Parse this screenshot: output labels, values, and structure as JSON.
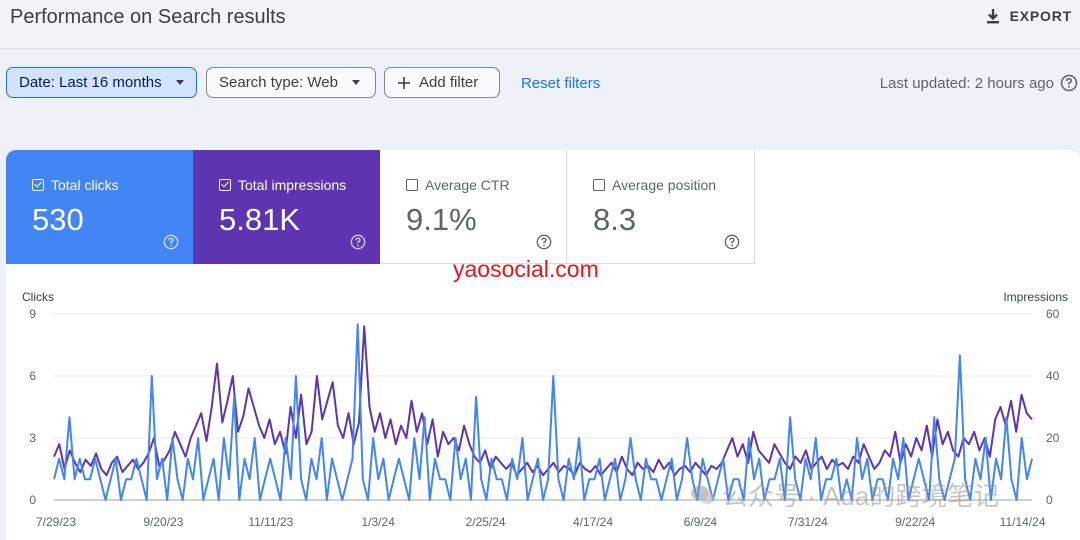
{
  "header": {
    "title": "Performance on Search results",
    "export_label": "EXPORT"
  },
  "filters": {
    "date": "Date: Last 16 months",
    "search_type": "Search type: Web",
    "add_filter": "Add filter",
    "reset": "Reset filters",
    "last_updated": "Last updated: 2 hours ago"
  },
  "metrics": [
    {
      "label": "Total clicks",
      "value": "530",
      "checked": true,
      "color": "#4285f4"
    },
    {
      "label": "Total impressions",
      "value": "5.81K",
      "checked": true,
      "color": "#5e35b1"
    },
    {
      "label": "Average CTR",
      "value": "9.1%",
      "checked": false
    },
    {
      "label": "Average position",
      "value": "8.3",
      "checked": false
    }
  ],
  "watermarks": {
    "site": "yaosocial.com",
    "wechat": "公众号 · Ada的跨境笔记"
  },
  "chart_data": {
    "type": "line",
    "left_axis_label": "Clicks",
    "right_axis_label": "Impressions",
    "left_ticks": [
      "9",
      "6",
      "3",
      "0"
    ],
    "right_ticks": [
      "60",
      "40",
      "20",
      "0"
    ],
    "left_range": [
      0,
      9
    ],
    "right_range": [
      0,
      60
    ],
    "x_ticks": [
      "7/29/23",
      "9/20/23",
      "11/11/23",
      "1/3/24",
      "2/25/24",
      "4/17/24",
      "6/9/24",
      "7/31/24",
      "9/22/24",
      "11/14/24"
    ],
    "series": [
      {
        "name": "Clicks",
        "axis": "left",
        "color": "#4285f4",
        "values": [
          1,
          2,
          1,
          4,
          1,
          2,
          1,
          1,
          2,
          1,
          0,
          1,
          2,
          0,
          1,
          1,
          2,
          1,
          0,
          6,
          1,
          2,
          0,
          3,
          1,
          0,
          2,
          1,
          3,
          0,
          1,
          2,
          0,
          3,
          1,
          5,
          0,
          2,
          1,
          3,
          0,
          1,
          2,
          1,
          0,
          3,
          1,
          6,
          1,
          0,
          2,
          1,
          3,
          0,
          2,
          1,
          0,
          1,
          2,
          8.5,
          1,
          0,
          3,
          1,
          2,
          0,
          1,
          2,
          1,
          0,
          3,
          1,
          4,
          0,
          2,
          1,
          1,
          0,
          3,
          1,
          2,
          0,
          5,
          1,
          0,
          2,
          1,
          1,
          0,
          2,
          1,
          3,
          0,
          1,
          2,
          0,
          1,
          6,
          1,
          0,
          2,
          1,
          3,
          0,
          1,
          1,
          2,
          0,
          1,
          2,
          0,
          1,
          3,
          1,
          0,
          2,
          1,
          1,
          0,
          1,
          2,
          0,
          1,
          3,
          1,
          0,
          2,
          1,
          0,
          1,
          2,
          0,
          1,
          1,
          0,
          3,
          1,
          2,
          0,
          1,
          1,
          2,
          0,
          4,
          1,
          0,
          2,
          1,
          3,
          0,
          1,
          1,
          2,
          0,
          1,
          0,
          3,
          1,
          2,
          0,
          1,
          1,
          0,
          2,
          1,
          3,
          0,
          1,
          2,
          1,
          0,
          4,
          1,
          0,
          1,
          2,
          7,
          1,
          0,
          2,
          1,
          3,
          0,
          2,
          1,
          4,
          1,
          0,
          3,
          1,
          2
        ]
      },
      {
        "name": "Impressions",
        "axis": "right",
        "color": "#5e35b1",
        "values": [
          14,
          18,
          10,
          16,
          12,
          9,
          13,
          11,
          15,
          10,
          8,
          12,
          14,
          9,
          11,
          13,
          10,
          12,
          15,
          20,
          11,
          13,
          16,
          22,
          18,
          14,
          20,
          24,
          28,
          19,
          30,
          44,
          25,
          32,
          40,
          22,
          27,
          36,
          30,
          24,
          20,
          26,
          18,
          22,
          15,
          30,
          20,
          34,
          18,
          22,
          40,
          26,
          32,
          38,
          24,
          20,
          28,
          18,
          25,
          56,
          30,
          22,
          28,
          20,
          26,
          18,
          24,
          20,
          32,
          22,
          28,
          18,
          26,
          14,
          22,
          18,
          20,
          16,
          24,
          18,
          14,
          12,
          16,
          10,
          14,
          12,
          10,
          12,
          8,
          10,
          12,
          9,
          11,
          8,
          10,
          12,
          9,
          11,
          10,
          8,
          12,
          10,
          9,
          11,
          8,
          10,
          12,
          9,
          14,
          10,
          8,
          12,
          10,
          11,
          9,
          13,
          10,
          12,
          8,
          10,
          11,
          9,
          12,
          10,
          8,
          11,
          10,
          12,
          16,
          20,
          14,
          18,
          12,
          22,
          16,
          14,
          12,
          18,
          15,
          12,
          10,
          14,
          12,
          16,
          10,
          12,
          14,
          10,
          13,
          11,
          12,
          10,
          14,
          12,
          18,
          14,
          10,
          12,
          16,
          14,
          22,
          12,
          18,
          14,
          20,
          16,
          24,
          14,
          26,
          18,
          22,
          16,
          14,
          20,
          18,
          22,
          16,
          20,
          14,
          26,
          30,
          24,
          32,
          22,
          34,
          28,
          26
        ]
      }
    ]
  }
}
